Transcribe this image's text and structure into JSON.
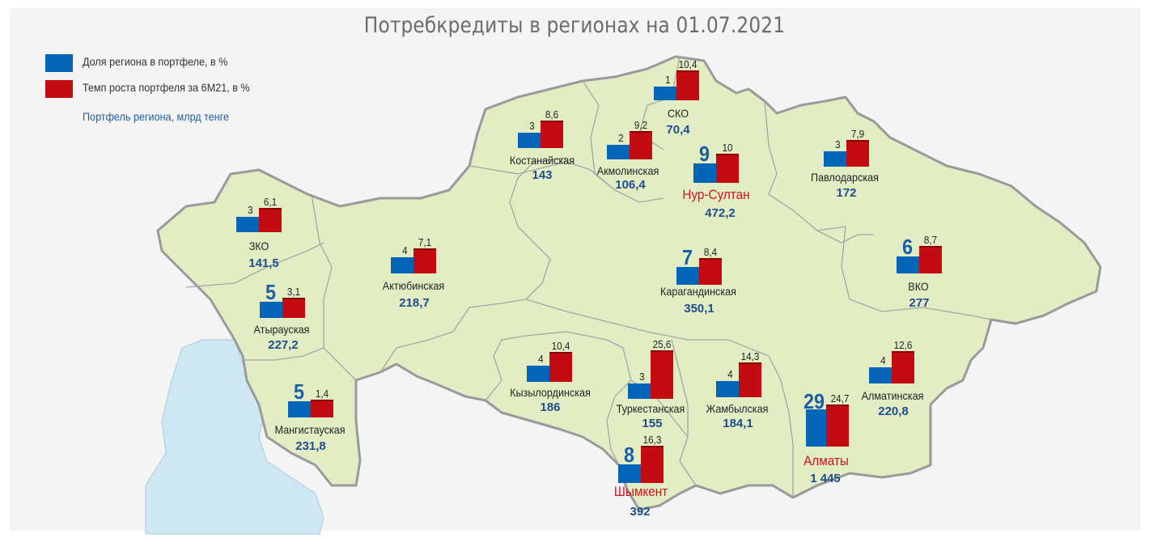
{
  "title": "Потребкредиты в регионах на 01.07.2021",
  "legend": {
    "share_label": "Доля региона в портфеле, в %",
    "growth_label": "Темп роста портфеля за 6М21, в %",
    "portfolio_label": "Портфель региона, млрд тенге"
  },
  "colors": {
    "share": "#0565b8",
    "growth": "#c30b12",
    "map_fill": "#e3edc4",
    "map_border": "#9a9a9a",
    "water": "#cfe6f3"
  },
  "regions": [
    {
      "key": "sko",
      "name": "СКО",
      "share": "1",
      "growth": "10,4",
      "portfolio": "70,4",
      "city": false,
      "share_v": 1,
      "growth_v": 10.4
    },
    {
      "key": "kostanay",
      "name": "Костанайская",
      "share": "3",
      "growth": "8,6",
      "portfolio": "143",
      "city": false,
      "share_v": 3,
      "growth_v": 8.6
    },
    {
      "key": "akmola",
      "name": "Акмолинская",
      "share": "2",
      "growth": "9,2",
      "portfolio": "106,4",
      "city": false,
      "share_v": 2,
      "growth_v": 9.2
    },
    {
      "key": "nursultan",
      "name": "Нур-Султан",
      "share": "9",
      "growth": "10",
      "portfolio": "472,2",
      "city": true,
      "share_v": 9,
      "growth_v": 10
    },
    {
      "key": "pavlodar",
      "name": "Павлодарская",
      "share": "3",
      "growth": "7,9",
      "portfolio": "172",
      "city": false,
      "share_v": 3,
      "growth_v": 7.9
    },
    {
      "key": "zko",
      "name": "ЗКО",
      "share": "3",
      "growth": "6,1",
      "portfolio": "141,5",
      "city": false,
      "share_v": 3,
      "growth_v": 6.1
    },
    {
      "key": "aktobe",
      "name": "Актюбинская",
      "share": "4",
      "growth": "7,1",
      "portfolio": "218,7",
      "city": false,
      "share_v": 4,
      "growth_v": 7.1
    },
    {
      "key": "karaganda",
      "name": "Карагандинская",
      "share": "7",
      "growth": "8,4",
      "portfolio": "350,1",
      "city": false,
      "share_v": 7,
      "growth_v": 8.4
    },
    {
      "key": "vko",
      "name": "ВКО",
      "share": "6",
      "growth": "8,7",
      "portfolio": "277",
      "city": false,
      "share_v": 6,
      "growth_v": 8.7
    },
    {
      "key": "atyrau",
      "name": "Атырауская",
      "share": "5",
      "growth": "3,1",
      "portfolio": "227,2",
      "city": false,
      "share_v": 5,
      "growth_v": 3.1
    },
    {
      "key": "mangystau",
      "name": "Мангистауская",
      "share": "5",
      "growth": "1,4",
      "portfolio": "231,8",
      "city": false,
      "share_v": 5,
      "growth_v": 1.4
    },
    {
      "key": "kyzylorda",
      "name": "Кызылординская",
      "share": "4",
      "growth": "10,4",
      "portfolio": "186",
      "city": false,
      "share_v": 4,
      "growth_v": 10.4
    },
    {
      "key": "turkestan",
      "name": "Туркестанская",
      "share": "3",
      "growth": "25,6",
      "portfolio": "155",
      "city": false,
      "share_v": 3,
      "growth_v": 25.6
    },
    {
      "key": "zhambyl",
      "name": "Жамбылская",
      "share": "4",
      "growth": "14,3",
      "portfolio": "184,1",
      "city": false,
      "share_v": 4,
      "growth_v": 14.3
    },
    {
      "key": "almaty_obl",
      "name": "Алматинская",
      "share": "4",
      "growth": "12,6",
      "portfolio": "220,8",
      "city": false,
      "share_v": 4,
      "growth_v": 12.6
    },
    {
      "key": "almaty",
      "name": "Алматы",
      "share": "29",
      "growth": "24,7",
      "portfolio": "1 445",
      "city": true,
      "share_v": 29,
      "growth_v": 24.7
    },
    {
      "key": "shymkent",
      "name": "Шымкент",
      "share": "8",
      "growth": "16,3",
      "portfolio": "392",
      "city": true,
      "share_v": 8,
      "growth_v": 16.3
    }
  ]
}
